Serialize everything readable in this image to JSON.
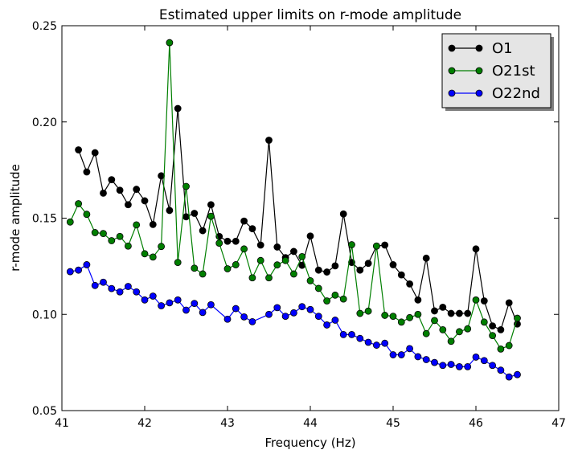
{
  "chart_data": {
    "type": "line",
    "title": "Estimated upper limits on r-mode amplitude",
    "xlabel": "Frequency (Hz)",
    "ylabel": "r-mode amplitude",
    "xlim": [
      41,
      47
    ],
    "ylim": [
      0.05,
      0.25
    ],
    "xticks": [
      "41",
      "42",
      "43",
      "44",
      "45",
      "46",
      "47"
    ],
    "yticks": [
      "0.05",
      "0.10",
      "0.15",
      "0.20",
      "0.25"
    ],
    "grid": false,
    "legend_position": "top-right",
    "series": [
      {
        "name": "O1",
        "color": "#000000",
        "x": [
          41.2,
          41.3,
          41.4,
          41.5,
          41.6,
          41.7,
          41.8,
          41.9,
          42.0,
          42.1,
          42.2,
          42.3,
          42.4,
          42.5,
          42.6,
          42.7,
          42.8,
          42.9,
          43.0,
          43.1,
          43.2,
          43.3,
          43.4,
          43.5,
          43.6,
          43.7,
          43.8,
          43.9,
          44.0,
          44.1,
          44.2,
          44.3,
          44.4,
          44.5,
          44.6,
          44.7,
          44.8,
          44.9,
          45.0,
          45.1,
          45.2,
          45.3,
          45.4,
          45.5,
          45.6,
          45.7,
          45.8,
          45.9,
          46.0,
          46.1,
          46.2,
          46.3,
          46.4,
          46.5
        ],
        "y": [
          0.1855,
          0.174,
          0.184,
          0.163,
          0.17,
          0.1645,
          0.157,
          0.165,
          0.159,
          0.1467,
          0.172,
          0.154,
          0.207,
          0.1507,
          0.1525,
          0.1435,
          0.157,
          0.1405,
          0.138,
          0.138,
          0.1485,
          0.1445,
          0.136,
          0.1905,
          0.135,
          0.1295,
          0.1327,
          0.1255,
          0.1407,
          0.123,
          0.122,
          0.1252,
          0.1522,
          0.127,
          0.123,
          0.1265,
          0.1355,
          0.136,
          0.1258,
          0.1205,
          0.1158,
          0.1075,
          0.1292,
          0.1018,
          0.1037,
          0.1005,
          0.1005,
          0.1005,
          0.134,
          0.107,
          0.094,
          0.092,
          0.106,
          0.095
        ]
      },
      {
        "name": "O21st",
        "color": "#007f00",
        "x": [
          41.1,
          41.2,
          41.3,
          41.4,
          41.5,
          41.6,
          41.7,
          41.8,
          41.9,
          42.0,
          42.1,
          42.2,
          42.3,
          42.4,
          42.5,
          42.6,
          42.7,
          42.8,
          42.9,
          43.0,
          43.1,
          43.2,
          43.3,
          43.4,
          43.5,
          43.6,
          43.7,
          43.8,
          43.9,
          44.0,
          44.1,
          44.2,
          44.3,
          44.4,
          44.5,
          44.6,
          44.7,
          44.8,
          44.9,
          45.0,
          45.1,
          45.2,
          45.3,
          45.4,
          45.5,
          45.6,
          45.7,
          45.8,
          45.9,
          46.0,
          46.1,
          46.2,
          46.3,
          46.4,
          46.5
        ],
        "y": [
          0.148,
          0.1575,
          0.152,
          0.1425,
          0.142,
          0.1383,
          0.1405,
          0.1355,
          0.1465,
          0.1315,
          0.1298,
          0.1353,
          0.2412,
          0.127,
          0.1665,
          0.124,
          0.121,
          0.151,
          0.137,
          0.1237,
          0.1258,
          0.134,
          0.119,
          0.128,
          0.119,
          0.1257,
          0.128,
          0.121,
          0.13,
          0.1175,
          0.1135,
          0.107,
          0.11,
          0.108,
          0.1362,
          0.1005,
          0.1017,
          0.1355,
          0.0995,
          0.099,
          0.096,
          0.0983,
          0.1,
          0.09,
          0.0968,
          0.092,
          0.086,
          0.091,
          0.0925,
          0.1075,
          0.096,
          0.089,
          0.082,
          0.0838,
          0.098
        ]
      },
      {
        "name": "O22nd",
        "color": "#0000ff",
        "x": [
          41.1,
          41.2,
          41.3,
          41.4,
          41.5,
          41.6,
          41.7,
          41.8,
          41.9,
          42.0,
          42.1,
          42.2,
          42.3,
          42.4,
          42.5,
          42.6,
          42.7,
          42.8,
          43.0,
          43.1,
          43.2,
          43.3,
          43.5,
          43.6,
          43.7,
          43.8,
          43.9,
          44.0,
          44.1,
          44.2,
          44.3,
          44.4,
          44.5,
          44.6,
          44.7,
          44.8,
          44.9,
          45.0,
          45.1,
          45.2,
          45.3,
          45.4,
          45.5,
          45.6,
          45.7,
          45.8,
          45.9,
          46.0,
          46.1,
          46.2,
          46.3,
          46.4,
          46.5
        ],
        "y": [
          0.1222,
          0.123,
          0.1258,
          0.115,
          0.1167,
          0.1134,
          0.1117,
          0.1145,
          0.1117,
          0.1075,
          0.1095,
          0.1045,
          0.106,
          0.1075,
          0.1022,
          0.1057,
          0.101,
          0.105,
          0.0975,
          0.103,
          0.0987,
          0.0962,
          0.1,
          0.1035,
          0.099,
          0.1008,
          0.104,
          0.1025,
          0.099,
          0.0945,
          0.097,
          0.0895,
          0.0895,
          0.0875,
          0.0855,
          0.084,
          0.085,
          0.079,
          0.079,
          0.0822,
          0.078,
          0.0765,
          0.075,
          0.0735,
          0.074,
          0.0728,
          0.0728,
          0.0778,
          0.076,
          0.0735,
          0.071,
          0.0675,
          0.0687
        ]
      }
    ]
  }
}
